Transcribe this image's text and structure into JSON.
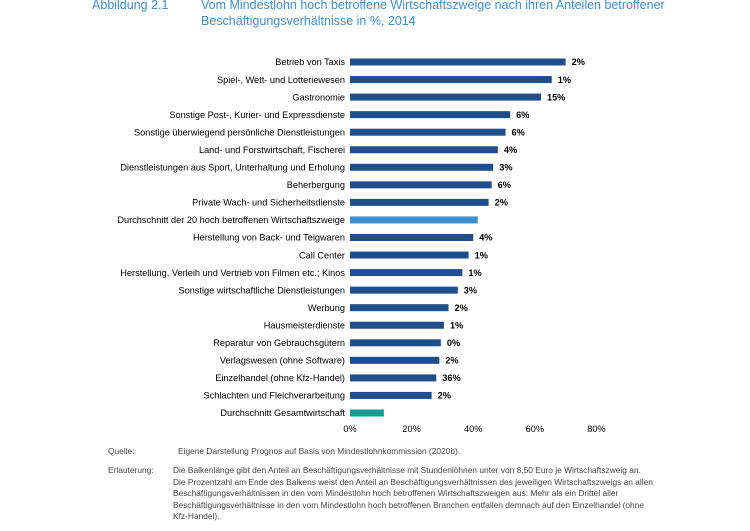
{
  "header": {
    "figure_number": "Abbildung 2.1",
    "title": "Vom Mindestlohn hoch betroffene Wirtschaftszweige nach ihren Anteilen betroffener Beschäftigungsverhältnisse in %, 2014"
  },
  "chart_data": {
    "type": "bar",
    "orientation": "horizontal",
    "title": "Vom Mindestlohn hoch betroffene Wirtschaftszweige nach ihren Anteilen betroffener Beschäftigungsverhältnisse in %, 2014",
    "xlabel": "",
    "ylabel": "",
    "xlim": [
      0,
      80
    ],
    "x_ticks": [
      "0%",
      "20%",
      "40%",
      "60%",
      "80%"
    ],
    "grid": false,
    "bars": [
      {
        "category": "Betrieb von Taxis",
        "value": 70,
        "share_label": "2%",
        "color": "#1f4e8c"
      },
      {
        "category": "Spiel-, Wett- und Lotteriewesen",
        "value": 65.5,
        "share_label": "1%",
        "color": "#1f4e8c"
      },
      {
        "category": "Gastronomie",
        "value": 62,
        "share_label": "15%",
        "color": "#1f4e8c"
      },
      {
        "category": "Sonstige Post-, Kurier- und Expressdienste",
        "value": 52,
        "share_label": "6%",
        "color": "#1f4e8c"
      },
      {
        "category": "Sonstige überwiegend persönliche Dienstleistungen",
        "value": 50.5,
        "share_label": "6%",
        "color": "#1f4e8c"
      },
      {
        "category": "Land- und Forstwirtschaft, Fischerei",
        "value": 48,
        "share_label": "4%",
        "color": "#1f4e8c"
      },
      {
        "category": "Dienstleistungen aus Sport, Unterhaltung und Erholung",
        "value": 46.5,
        "share_label": "3%",
        "color": "#1f4e8c"
      },
      {
        "category": "Beherbergung",
        "value": 46,
        "share_label": "6%",
        "color": "#1f4e8c"
      },
      {
        "category": "Private Wach- und Sicherheitsdienste",
        "value": 45,
        "share_label": "2%",
        "color": "#1f4e8c"
      },
      {
        "category": "Durchschnitt der 20 hoch betroffenen Wirtschaftszweige",
        "value": 41.5,
        "share_label": "",
        "color": "#3d8fce"
      },
      {
        "category": "Herstellung von Back- und Teigwaren",
        "value": 40,
        "share_label": "4%",
        "color": "#1f4e8c"
      },
      {
        "category": "Call Center",
        "value": 38.5,
        "share_label": "1%",
        "color": "#1f4e8c"
      },
      {
        "category": "Herstellung, Verleih und Vertrieb von Filmen etc.; Kinos",
        "value": 36.5,
        "share_label": "1%",
        "color": "#1f4e8c"
      },
      {
        "category": "Sonstige wirtschaftliche Dienstleistungen",
        "value": 35,
        "share_label": "3%",
        "color": "#1f4e8c"
      },
      {
        "category": "Werbung",
        "value": 32,
        "share_label": "2%",
        "color": "#1f4e8c"
      },
      {
        "category": "Hausmeisterdienste",
        "value": 30.5,
        "share_label": "1%",
        "color": "#1f4e8c"
      },
      {
        "category": "Reparatur von Gebrauchsgütern",
        "value": 29.5,
        "share_label": "0%",
        "color": "#1f4e8c"
      },
      {
        "category": "Verlagswesen (ohne Software)",
        "value": 29,
        "share_label": "2%",
        "color": "#1f4e8c"
      },
      {
        "category": "Einzelhandel (ohne Kfz-Handel)",
        "value": 28,
        "share_label": "36%",
        "color": "#1f4e8c"
      },
      {
        "category": "Schlachten und Fleichverarbeitung",
        "value": 26.5,
        "share_label": "2%",
        "color": "#1f4e8c"
      },
      {
        "category": "Durchschnitt Gesamtwirtschaft",
        "value": 11,
        "share_label": "",
        "color": "#1a9a96"
      }
    ]
  },
  "footer": {
    "source_label": "Quelle:",
    "source_text": "Eigene Darstellung Prognos auf Basis von Mindestlohnkommission (2020b).",
    "explanation_label": "Erlauterung:",
    "explanation_text": "Die Balkenlänge gibt den Anteil an Beschäftigungsverhältnisse mit Stundenlöhnen unter von 8,50 Euro je Wirtschaftszweig an. Die Prozentzahl am Ende des Balkens weist den Anteil an Beschäftigungsverhältnissen des jeweiligen Wirtschaftszweigs an allen Beschäftigungsverhältnissen in den vom Mindestlohn hoch betroffenen Wirtschaftszweigen aus: Mehr als ein Drittel aller Beschäftigungsverhältnisse in den vom Mindestlohn hoch betroffenen Branchen entfallen demnach auf den Einzelhandel (ohne Kfz-Handel)."
  }
}
